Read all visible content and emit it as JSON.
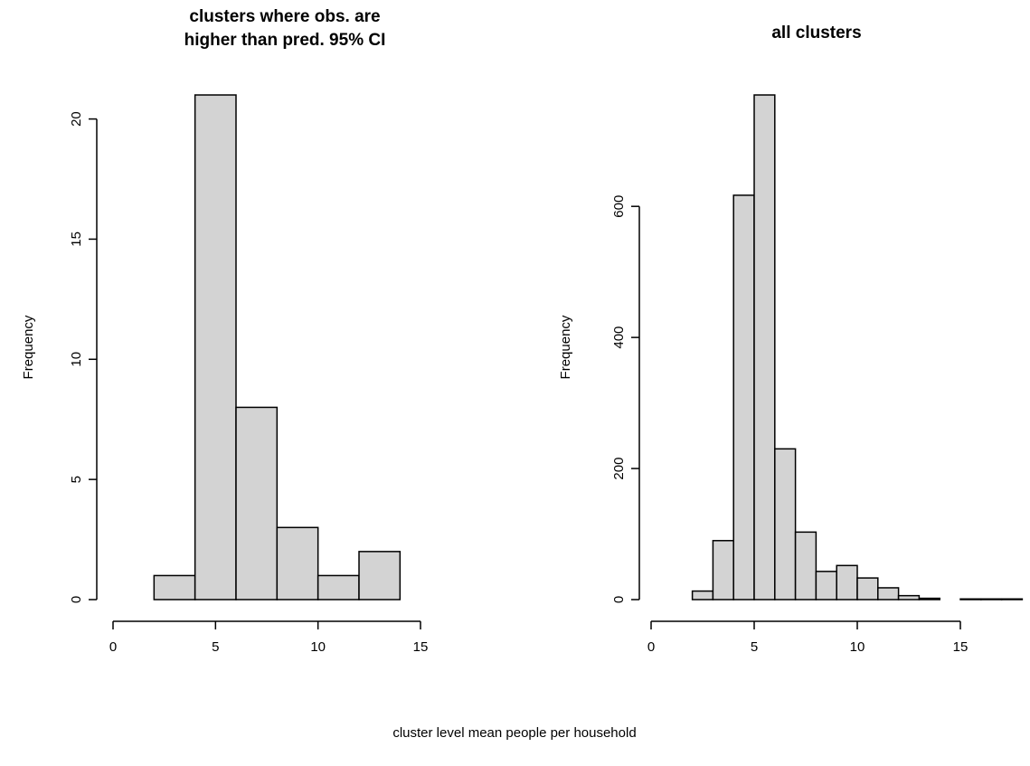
{
  "xlabel_shared": "cluster level mean people per household",
  "chart_data": [
    {
      "type": "bar",
      "title_lines": [
        "clusters where obs. are",
        "higher than pred. 95% CI"
      ],
      "ylabel": "Frequency",
      "xlim": [
        0,
        15
      ],
      "ylim": [
        0,
        21
      ],
      "x_ticks": [
        0,
        5,
        10,
        15
      ],
      "y_ticks": [
        0,
        5,
        10,
        15,
        20
      ],
      "bins": [
        {
          "x0": 2,
          "x1": 4,
          "value": 1
        },
        {
          "x0": 4,
          "x1": 6,
          "value": 21
        },
        {
          "x0": 6,
          "x1": 8,
          "value": 8
        },
        {
          "x0": 8,
          "x1": 10,
          "value": 3
        },
        {
          "x0": 10,
          "x1": 12,
          "value": 1
        },
        {
          "x0": 12,
          "x1": 14,
          "value": 2
        }
      ]
    },
    {
      "type": "bar",
      "title_lines": [
        "all clusters"
      ],
      "ylabel": "Frequency",
      "xlim": [
        0,
        15
      ],
      "ylim": [
        0,
        770
      ],
      "x_ticks": [
        0,
        5,
        10,
        15
      ],
      "y_ticks": [
        0,
        200,
        400,
        600
      ],
      "bins": [
        {
          "x0": 2,
          "x1": 3,
          "value": 13
        },
        {
          "x0": 3,
          "x1": 4,
          "value": 90
        },
        {
          "x0": 4,
          "x1": 5,
          "value": 617
        },
        {
          "x0": 5,
          "x1": 6,
          "value": 770
        },
        {
          "x0": 6,
          "x1": 7,
          "value": 230
        },
        {
          "x0": 7,
          "x1": 8,
          "value": 103
        },
        {
          "x0": 8,
          "x1": 9,
          "value": 43
        },
        {
          "x0": 9,
          "x1": 10,
          "value": 52
        },
        {
          "x0": 10,
          "x1": 11,
          "value": 33
        },
        {
          "x0": 11,
          "x1": 12,
          "value": 18
        },
        {
          "x0": 12,
          "x1": 13,
          "value": 6
        },
        {
          "x0": 13,
          "x1": 14,
          "value": 2
        },
        {
          "x0": 14,
          "x1": 15,
          "value": 0
        },
        {
          "x0": 15,
          "x1": 16,
          "value": 1
        },
        {
          "x0": 16,
          "x1": 17,
          "value": 1
        },
        {
          "x0": 17,
          "x1": 18,
          "value": 1
        }
      ]
    }
  ]
}
